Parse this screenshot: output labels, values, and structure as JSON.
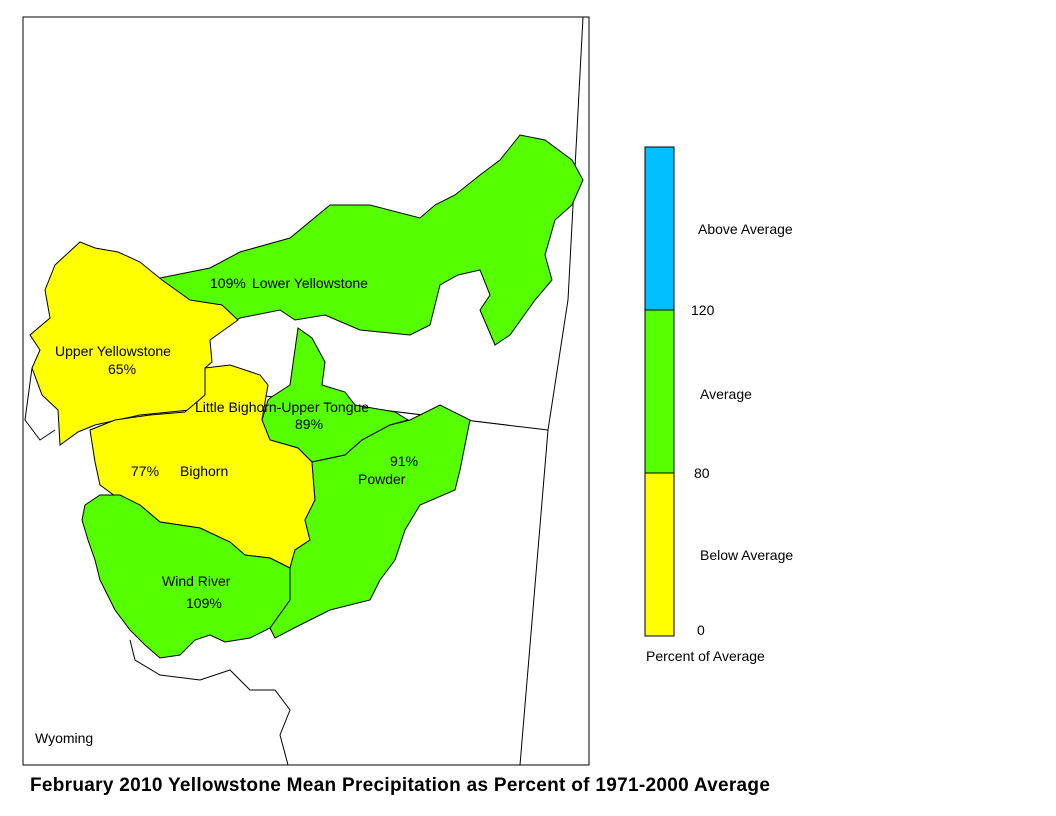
{
  "title": "February 2010 Yellowstone Mean Precipitation as Percent of 1971-2000 Average",
  "state_label": "Wyoming",
  "colors": {
    "above": "#00c0ff",
    "average": "#55ff00",
    "below": "#ffff00",
    "border": "#000000"
  },
  "regions": [
    {
      "id": "lower-yellowstone",
      "name": "Lower Yellowstone",
      "value_text": "109%",
      "percent": 109
    },
    {
      "id": "upper-yellowstone",
      "name": "Upper Yellowstone",
      "value_text": "65%",
      "percent": 65
    },
    {
      "id": "little-bighorn-upper-tongue",
      "name": "Little Bighorn-Upper Tongue",
      "value_text": "89%",
      "percent": 89
    },
    {
      "id": "bighorn",
      "name": "Bighorn",
      "value_text": "77%",
      "percent": 77
    },
    {
      "id": "powder",
      "name": "Powder",
      "value_text": "91%",
      "percent": 91
    },
    {
      "id": "wind-river",
      "name": "Wind River",
      "value_text": "109%",
      "percent": 109
    }
  ],
  "legend": {
    "caption": "Percent of Average",
    "classes": [
      {
        "label": "Above Average",
        "range": "120+"
      },
      {
        "label": "Average",
        "range": "80-120"
      },
      {
        "label": "Below Average",
        "range": "0-80"
      }
    ],
    "ticks": [
      "120",
      "80",
      "0"
    ]
  }
}
